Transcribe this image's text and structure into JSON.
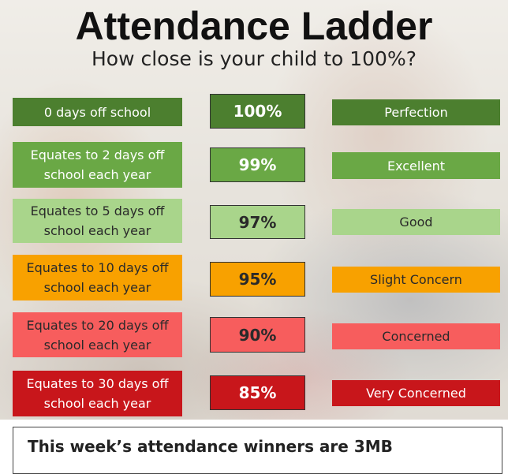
{
  "header": {
    "title": "Attendance Ladder",
    "subtitle": "How close is your child to 100%?"
  },
  "rows": [
    {
      "description": "0 days off school",
      "percent": "100%",
      "rating": "Perfection",
      "color": "#4c7f2f",
      "text_color": "#ffffff"
    },
    {
      "description": "Equates to 2 days off school each year",
      "percent": "99%",
      "rating": "Excellent",
      "color": "#6aa845",
      "text_color": "#ffffff"
    },
    {
      "description": "Equates to 5 days off school each year",
      "percent": "97%",
      "rating": "Good",
      "color": "#a9d58b",
      "text_color": "#2a2a2a"
    },
    {
      "description": "Equates to 10 days off school each year",
      "percent": "95%",
      "rating": "Slight Concern",
      "color": "#f8a100",
      "text_color": "#2a2a2a"
    },
    {
      "description": "Equates to 20 days off school each year",
      "percent": "90%",
      "rating": "Concerned",
      "color": "#f75d5d",
      "text_color": "#2a2a2a"
    },
    {
      "description": "Equates to 30 days off school each year",
      "percent": "85%",
      "rating": "Very Concerned",
      "color": "#c8161b",
      "text_color": "#ffffff"
    }
  ],
  "footer": {
    "text": "This week’s attendance winners are 3MB"
  }
}
